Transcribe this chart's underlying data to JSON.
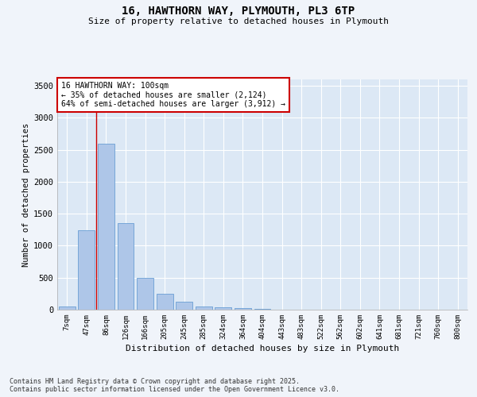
{
  "title_line1": "16, HAWTHORN WAY, PLYMOUTH, PL3 6TP",
  "title_line2": "Size of property relative to detached houses in Plymouth",
  "xlabel": "Distribution of detached houses by size in Plymouth",
  "ylabel": "Number of detached properties",
  "categories": [
    "7sqm",
    "47sqm",
    "86sqm",
    "126sqm",
    "166sqm",
    "205sqm",
    "245sqm",
    "285sqm",
    "324sqm",
    "364sqm",
    "404sqm",
    "443sqm",
    "483sqm",
    "522sqm",
    "562sqm",
    "602sqm",
    "641sqm",
    "681sqm",
    "721sqm",
    "760sqm",
    "800sqm"
  ],
  "values": [
    50,
    1240,
    2600,
    1350,
    500,
    250,
    120,
    55,
    35,
    20,
    10,
    5,
    5,
    0,
    0,
    0,
    0,
    0,
    0,
    0,
    0
  ],
  "bar_color": "#aec6e8",
  "bar_edge_color": "#6a9fd4",
  "background_color": "#dce8f5",
  "grid_color": "#ffffff",
  "vline_color": "#cc0000",
  "annotation_text": "16 HAWTHORN WAY: 100sqm\n← 35% of detached houses are smaller (2,124)\n64% of semi-detached houses are larger (3,912) →",
  "annotation_box_color": "#ffffff",
  "annotation_box_edge": "#cc0000",
  "ylim": [
    0,
    3600
  ],
  "yticks": [
    0,
    500,
    1000,
    1500,
    2000,
    2500,
    3000,
    3500
  ],
  "footer_line1": "Contains HM Land Registry data © Crown copyright and database right 2025.",
  "footer_line2": "Contains public sector information licensed under the Open Government Licence v3.0."
}
